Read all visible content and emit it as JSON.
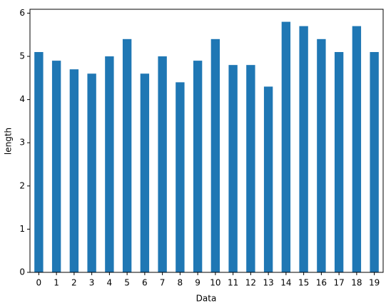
{
  "chart_data": {
    "type": "bar",
    "categories": [
      "0",
      "1",
      "2",
      "3",
      "4",
      "5",
      "6",
      "7",
      "8",
      "9",
      "10",
      "11",
      "12",
      "13",
      "14",
      "15",
      "16",
      "17",
      "18",
      "19"
    ],
    "values": [
      5.1,
      4.9,
      4.7,
      4.6,
      5.0,
      5.4,
      4.6,
      5.0,
      4.4,
      4.9,
      5.4,
      4.8,
      4.8,
      4.3,
      5.8,
      5.7,
      5.4,
      5.1,
      5.7,
      5.1
    ],
    "color": "#1f77b4",
    "xlabel": "Data",
    "ylabel": "length",
    "ylim": [
      0,
      6.09
    ],
    "yticks": [
      0,
      1,
      2,
      3,
      4,
      5,
      6
    ],
    "grid": false
  }
}
